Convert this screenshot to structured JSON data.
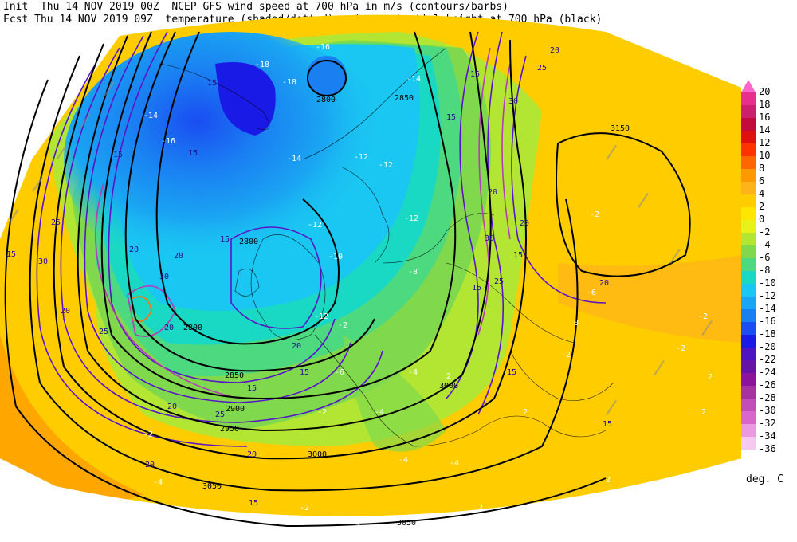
{
  "header": {
    "line1": "Init  Thu 14 NOV 2019 00Z  NCEP GFS wind speed at 700 hPa in m/s (contours/barbs)",
    "line2": "Fcst Thu 14 NOV 2019 09Z  temperature (shaded/dotted) and geopotential height at 700 hPa (black)"
  },
  "legend": {
    "units": "deg. C",
    "items": [
      {
        "value": "20",
        "color": "#ff66cc"
      },
      {
        "value": "18",
        "color": "#e6308c"
      },
      {
        "value": "16",
        "color": "#cc1f6e"
      },
      {
        "value": "14",
        "color": "#c40c3c"
      },
      {
        "value": "12",
        "color": "#e01010"
      },
      {
        "value": "10",
        "color": "#ff3300"
      },
      {
        "value": "8",
        "color": "#ff6600"
      },
      {
        "value": "6",
        "color": "#ff9900"
      },
      {
        "value": "4",
        "color": "#ffb31a"
      },
      {
        "value": "2",
        "color": "#ffcc00"
      },
      {
        "value": "0",
        "color": "#ffe600"
      },
      {
        "value": "-2",
        "color": "#e6f21a"
      },
      {
        "value": "-4",
        "color": "#b3e633"
      },
      {
        "value": "-6",
        "color": "#80d94d"
      },
      {
        "value": "-8",
        "color": "#4dd980"
      },
      {
        "value": "-10",
        "color": "#1ad9c4"
      },
      {
        "value": "-12",
        "color": "#1ac6f2"
      },
      {
        "value": "-14",
        "color": "#1aa6f2"
      },
      {
        "value": "-16",
        "color": "#1a80f2"
      },
      {
        "value": "-18",
        "color": "#1a4df2"
      },
      {
        "value": "-20",
        "color": "#1a1ae6"
      },
      {
        "value": "-22",
        "color": "#4d14c4"
      },
      {
        "value": "-24",
        "color": "#6614a6"
      },
      {
        "value": "-26",
        "color": "#8c1499"
      },
      {
        "value": "-28",
        "color": "#a6339f"
      },
      {
        "value": "-30",
        "color": "#c24db8"
      },
      {
        "value": "-32",
        "color": "#d966cc"
      },
      {
        "value": "-34",
        "color": "#eb99e0"
      },
      {
        "value": "-36",
        "color": "#f7c8f0"
      }
    ]
  },
  "map_labels": {
    "height": [
      "2800",
      "2850",
      "2800",
      "2800",
      "2850",
      "2900",
      "2950",
      "3000",
      "3000",
      "3050",
      "3050",
      "3150"
    ],
    "wind": [
      "15",
      "15",
      "15",
      "15",
      "20",
      "20",
      "20",
      "20",
      "25",
      "25",
      "30",
      "30",
      "20",
      "15",
      "15",
      "20",
      "25",
      "30",
      "30",
      "25",
      "20",
      "15",
      "20",
      "15",
      "15",
      "15",
      "15",
      "20",
      "25",
      "20",
      "20",
      "15",
      "20",
      "15",
      "15"
    ],
    "temp": [
      "-18",
      "-18",
      "-16",
      "-14",
      "-14",
      "-16",
      "-14",
      "-12",
      "-12",
      "-12",
      "-12",
      "-10",
      "-8",
      "-4",
      "-4",
      "-2",
      "-2",
      "-4",
      "-4",
      "-2",
      "-2",
      "-6",
      "-2",
      "-2",
      "-2",
      "-4",
      "-2",
      "-6",
      "-4",
      "-2",
      "2",
      "2",
      "2",
      "2",
      "2",
      "2",
      "0",
      "-12"
    ]
  }
}
